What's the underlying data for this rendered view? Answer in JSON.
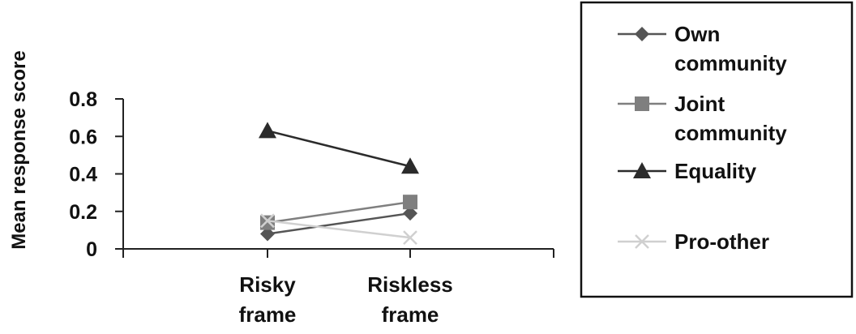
{
  "chart_data": {
    "type": "line",
    "title": "",
    "xlabel": "",
    "ylabel": "Mean response score",
    "categories": [
      "Risky frame",
      "Riskless frame"
    ],
    "category_lines": [
      [
        "Risky",
        "frame"
      ],
      [
        "Riskless",
        "frame"
      ]
    ],
    "ylim": [
      0,
      0.8
    ],
    "yticks": [
      0,
      0.2,
      0.4,
      0.6,
      0.8
    ],
    "ytick_labels": [
      "0",
      "0.2",
      "0.4",
      "0.6",
      "0.8"
    ],
    "grid": false,
    "legend_position": "right",
    "series": [
      {
        "name": "Own community",
        "name_lines": [
          "Own",
          "community"
        ],
        "values": [
          0.08,
          0.19
        ],
        "color": "#555555",
        "marker": "diamond"
      },
      {
        "name": "Joint community",
        "name_lines": [
          "Joint",
          "community"
        ],
        "values": [
          0.14,
          0.25
        ],
        "color": "#7f7f7f",
        "marker": "square"
      },
      {
        "name": "Equality",
        "name_lines": [
          "Equality"
        ],
        "values": [
          0.63,
          0.44
        ],
        "color": "#2b2b2b",
        "marker": "triangle"
      },
      {
        "name": "Pro-other",
        "name_lines": [
          "Pro-other"
        ],
        "values": [
          0.15,
          0.06
        ],
        "color": "#d0d0d0",
        "marker": "x"
      }
    ]
  }
}
